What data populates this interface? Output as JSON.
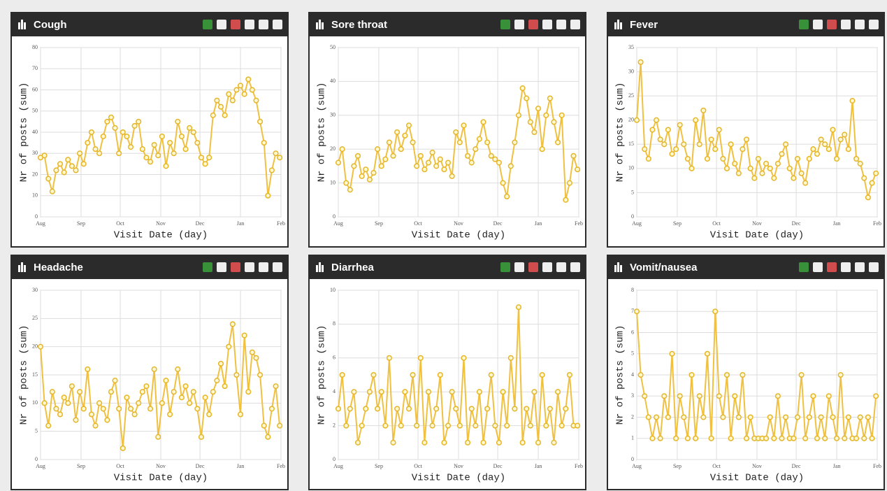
{
  "chart_data": [
    {
      "type": "line",
      "title": "Cough",
      "xlabel": "Visit Date (day)",
      "ylabel": "Nr of posts (sum)",
      "color": "#f0c040",
      "grid": true,
      "x": [
        0,
        3,
        6,
        9,
        12,
        15,
        18,
        21,
        24,
        27,
        30,
        33,
        36,
        39,
        42,
        45,
        48,
        51,
        54,
        57,
        60,
        63,
        66,
        69,
        72,
        75,
        78,
        81,
        84,
        87,
        90,
        93,
        96,
        99,
        102,
        105,
        108,
        111,
        114,
        117,
        120,
        123,
        126,
        129,
        132,
        135,
        138,
        141,
        144,
        147,
        150,
        153,
        156,
        159,
        162,
        165,
        168,
        171,
        174,
        177,
        180,
        183
      ],
      "values": [
        28,
        29,
        18,
        12,
        22,
        25,
        21,
        27,
        24,
        22,
        30,
        25,
        35,
        40,
        32,
        30,
        38,
        45,
        47,
        42,
        30,
        40,
        38,
        33,
        43,
        45,
        32,
        28,
        26,
        34,
        29,
        38,
        24,
        35,
        30,
        45,
        38,
        32,
        42,
        40,
        35,
        28,
        25,
        28,
        48,
        55,
        52,
        48,
        58,
        55,
        60,
        62,
        58,
        65,
        60,
        55,
        45,
        35,
        10,
        22,
        30,
        28
      ],
      "xlim": [
        0,
        184
      ],
      "xticks": [
        {
          "value": 0,
          "label": "Aug"
        },
        {
          "value": 31,
          "label": "Sep"
        },
        {
          "value": 61,
          "label": "Oct"
        },
        {
          "value": 92,
          "label": "Nov"
        },
        {
          "value": 122,
          "label": "Dec"
        },
        {
          "value": 153,
          "label": "Jan"
        },
        {
          "value": 184,
          "label": "Feb"
        }
      ],
      "ylim": [
        0,
        80
      ],
      "yticks": [
        0,
        10,
        20,
        30,
        40,
        50,
        60,
        70,
        80
      ]
    },
    {
      "type": "line",
      "title": "Sore throat",
      "xlabel": "Visit Date (day)",
      "ylabel": "Nr of posts (sum)",
      "color": "#f0c040",
      "grid": true,
      "x": [
        0,
        3,
        6,
        9,
        12,
        15,
        18,
        21,
        24,
        27,
        30,
        33,
        36,
        39,
        42,
        45,
        48,
        51,
        54,
        57,
        60,
        63,
        66,
        69,
        72,
        75,
        78,
        81,
        84,
        87,
        90,
        93,
        96,
        99,
        102,
        105,
        108,
        111,
        114,
        117,
        120,
        123,
        126,
        129,
        132,
        135,
        138,
        141,
        144,
        147,
        150,
        153,
        156,
        159,
        162,
        165,
        168,
        171,
        174,
        177,
        180,
        183
      ],
      "values": [
        16,
        20,
        10,
        8,
        15,
        18,
        12,
        14,
        11,
        13,
        20,
        15,
        17,
        22,
        18,
        25,
        20,
        24,
        27,
        22,
        15,
        18,
        14,
        16,
        19,
        15,
        17,
        14,
        16,
        12,
        25,
        22,
        27,
        18,
        16,
        20,
        23,
        28,
        22,
        18,
        17,
        16,
        10,
        6,
        15,
        22,
        30,
        38,
        35,
        28,
        25,
        32,
        20,
        30,
        35,
        28,
        22,
        30,
        5,
        10,
        18,
        14
      ],
      "xlim": [
        0,
        184
      ],
      "xticks": [
        {
          "value": 0,
          "label": "Aug"
        },
        {
          "value": 31,
          "label": "Sep"
        },
        {
          "value": 61,
          "label": "Oct"
        },
        {
          "value": 92,
          "label": "Nov"
        },
        {
          "value": 122,
          "label": "Dec"
        },
        {
          "value": 153,
          "label": "Jan"
        },
        {
          "value": 184,
          "label": "Feb"
        }
      ],
      "ylim": [
        0,
        50
      ],
      "yticks": [
        0,
        10,
        20,
        30,
        40,
        50
      ]
    },
    {
      "type": "line",
      "title": "Fever",
      "xlabel": "Visit Date (day)",
      "ylabel": "Nr of posts (sum)",
      "color": "#f0c040",
      "grid": true,
      "x": [
        0,
        3,
        6,
        9,
        12,
        15,
        18,
        21,
        24,
        27,
        30,
        33,
        36,
        39,
        42,
        45,
        48,
        51,
        54,
        57,
        60,
        63,
        66,
        69,
        72,
        75,
        78,
        81,
        84,
        87,
        90,
        93,
        96,
        99,
        102,
        105,
        108,
        111,
        114,
        117,
        120,
        123,
        126,
        129,
        132,
        135,
        138,
        141,
        144,
        147,
        150,
        153,
        156,
        159,
        162,
        165,
        168,
        171,
        174,
        177,
        180,
        183
      ],
      "values": [
        20,
        32,
        14,
        12,
        18,
        20,
        16,
        15,
        18,
        13,
        14,
        19,
        15,
        12,
        10,
        20,
        15,
        22,
        12,
        16,
        14,
        18,
        12,
        10,
        15,
        11,
        9,
        14,
        16,
        10,
        8,
        12,
        9,
        11,
        10,
        8,
        11,
        13,
        15,
        10,
        8,
        12,
        9,
        7,
        12,
        14,
        13,
        16,
        15,
        14,
        18,
        12,
        16,
        17,
        14,
        24,
        12,
        11,
        8,
        4,
        7,
        9
      ],
      "xlim": [
        0,
        184
      ],
      "xticks": [
        {
          "value": 0,
          "label": "Aug"
        },
        {
          "value": 31,
          "label": "Sep"
        },
        {
          "value": 61,
          "label": "Oct"
        },
        {
          "value": 92,
          "label": "Nov"
        },
        {
          "value": 122,
          "label": "Dec"
        },
        {
          "value": 153,
          "label": "Jan"
        },
        {
          "value": 184,
          "label": "Feb"
        }
      ],
      "ylim": [
        0,
        35
      ],
      "yticks": [
        0,
        5,
        10,
        15,
        20,
        25,
        30,
        35
      ]
    },
    {
      "type": "line",
      "title": "Headache",
      "xlabel": "Visit Date (day)",
      "ylabel": "Nr of posts (sum)",
      "color": "#f0c040",
      "grid": true,
      "x": [
        0,
        3,
        6,
        9,
        12,
        15,
        18,
        21,
        24,
        27,
        30,
        33,
        36,
        39,
        42,
        45,
        48,
        51,
        54,
        57,
        60,
        63,
        66,
        69,
        72,
        75,
        78,
        81,
        84,
        87,
        90,
        93,
        96,
        99,
        102,
        105,
        108,
        111,
        114,
        117,
        120,
        123,
        126,
        129,
        132,
        135,
        138,
        141,
        144,
        147,
        150,
        153,
        156,
        159,
        162,
        165,
        168,
        171,
        174,
        177,
        180,
        183
      ],
      "values": [
        20,
        10,
        6,
        12,
        9,
        8,
        11,
        10,
        13,
        7,
        12,
        9,
        16,
        8,
        6,
        10,
        9,
        7,
        12,
        14,
        9,
        2,
        11,
        9,
        8,
        10,
        12,
        13,
        9,
        16,
        4,
        10,
        14,
        8,
        12,
        16,
        11,
        13,
        10,
        12,
        9,
        4,
        11,
        8,
        12,
        14,
        17,
        13,
        20,
        24,
        15,
        8,
        22,
        12,
        19,
        18,
        15,
        6,
        4,
        9,
        13,
        6
      ],
      "xlim": [
        0,
        184
      ],
      "xticks": [
        {
          "value": 0,
          "label": "Aug"
        },
        {
          "value": 31,
          "label": "Sep"
        },
        {
          "value": 61,
          "label": "Oct"
        },
        {
          "value": 92,
          "label": "Nov"
        },
        {
          "value": 122,
          "label": "Dec"
        },
        {
          "value": 153,
          "label": "Jan"
        },
        {
          "value": 184,
          "label": "Feb"
        }
      ],
      "ylim": [
        0,
        30
      ],
      "yticks": [
        0,
        5,
        10,
        15,
        20,
        25,
        30
      ]
    },
    {
      "type": "line",
      "title": "Diarrhea",
      "xlabel": "Visit Date (day)",
      "ylabel": "Nr of posts (sum)",
      "color": "#f0c040",
      "grid": true,
      "x": [
        0,
        3,
        6,
        9,
        12,
        15,
        18,
        21,
        24,
        27,
        30,
        33,
        36,
        39,
        42,
        45,
        48,
        51,
        54,
        57,
        60,
        63,
        66,
        69,
        72,
        75,
        78,
        81,
        84,
        87,
        90,
        93,
        96,
        99,
        102,
        105,
        108,
        111,
        114,
        117,
        120,
        123,
        126,
        129,
        132,
        135,
        138,
        141,
        144,
        147,
        150,
        153,
        156,
        159,
        162,
        165,
        168,
        171,
        174,
        177,
        180,
        183
      ],
      "values": [
        3,
        5,
        2,
        3,
        4,
        1,
        2,
        3,
        4,
        5,
        3,
        4,
        2,
        6,
        1,
        3,
        2,
        4,
        3,
        5,
        2,
        6,
        1,
        4,
        2,
        3,
        5,
        1,
        2,
        4,
        3,
        2,
        6,
        1,
        3,
        2,
        4,
        1,
        3,
        5,
        2,
        1,
        4,
        2,
        6,
        3,
        9,
        1,
        3,
        2,
        4,
        1,
        5,
        2,
        3,
        1,
        4,
        2,
        3,
        5,
        2,
        2
      ],
      "xlim": [
        0,
        184
      ],
      "xticks": [
        {
          "value": 0,
          "label": "Aug"
        },
        {
          "value": 31,
          "label": "Sep"
        },
        {
          "value": 61,
          "label": "Oct"
        },
        {
          "value": 92,
          "label": "Nov"
        },
        {
          "value": 122,
          "label": "Dec"
        },
        {
          "value": 153,
          "label": "Jan"
        },
        {
          "value": 184,
          "label": "Feb"
        }
      ],
      "ylim": [
        0,
        10
      ],
      "yticks": [
        0,
        2,
        4,
        6,
        8,
        10
      ]
    },
    {
      "type": "line",
      "title": "Vomit/nausea",
      "xlabel": "Visit Date (day)",
      "ylabel": "Nr of posts (sum)",
      "color": "#f0c040",
      "grid": true,
      "x": [
        0,
        3,
        6,
        9,
        12,
        15,
        18,
        21,
        24,
        27,
        30,
        33,
        36,
        39,
        42,
        45,
        48,
        51,
        54,
        57,
        60,
        63,
        66,
        69,
        72,
        75,
        78,
        81,
        84,
        87,
        90,
        93,
        96,
        99,
        102,
        105,
        108,
        111,
        114,
        117,
        120,
        123,
        126,
        129,
        132,
        135,
        138,
        141,
        144,
        147,
        150,
        153,
        156,
        159,
        162,
        165,
        168,
        171,
        174,
        177,
        180,
        183
      ],
      "values": [
        7,
        4,
        3,
        2,
        1,
        2,
        1,
        3,
        2,
        5,
        1,
        3,
        2,
        1,
        4,
        1,
        3,
        2,
        5,
        1,
        7,
        3,
        2,
        4,
        1,
        3,
        2,
        4,
        1,
        2,
        1,
        1,
        1,
        1,
        2,
        1,
        3,
        1,
        2,
        1,
        1,
        2,
        4,
        1,
        2,
        3,
        1,
        2,
        1,
        3,
        2,
        1,
        4,
        1,
        2,
        1,
        1,
        2,
        1,
        2,
        1,
        3
      ],
      "xlim": [
        0,
        184
      ],
      "xticks": [
        {
          "value": 0,
          "label": "Aug"
        },
        {
          "value": 31,
          "label": "Sep"
        },
        {
          "value": 61,
          "label": "Oct"
        },
        {
          "value": 92,
          "label": "Nov"
        },
        {
          "value": 122,
          "label": "Dec"
        },
        {
          "value": 153,
          "label": "Jan"
        },
        {
          "value": 184,
          "label": "Feb"
        }
      ],
      "ylim": [
        0,
        8
      ],
      "yticks": [
        0,
        1,
        2,
        3,
        4,
        5,
        6,
        7,
        8
      ]
    }
  ]
}
